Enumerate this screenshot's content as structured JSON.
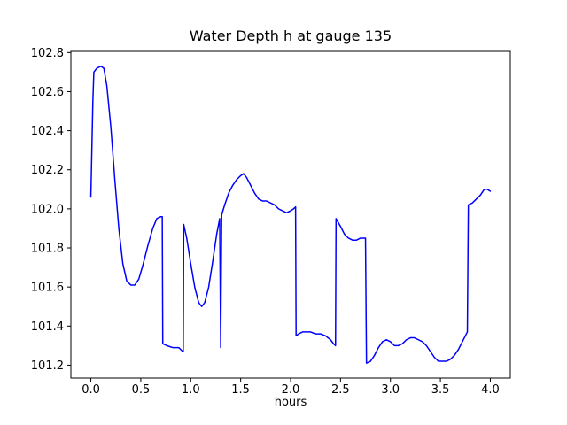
{
  "figure": {
    "background": "#ffffff",
    "axes_color": "#000000",
    "line_color": "#0000ff"
  },
  "chart_data": {
    "type": "line",
    "title": "Water Depth h at gauge 135",
    "xlabel": "hours",
    "ylabel": "",
    "legend": "none",
    "grid": false,
    "xlim": [
      -0.2,
      4.2
    ],
    "ylim": [
      101.134,
      102.806
    ],
    "x_ticks": [
      0.0,
      0.5,
      1.0,
      1.5,
      2.0,
      2.5,
      3.0,
      3.5,
      4.0
    ],
    "x_tick_labels": [
      "0.0",
      "0.5",
      "1.0",
      "1.5",
      "2.0",
      "2.5",
      "3.0",
      "3.5",
      "4.0"
    ],
    "y_ticks": [
      101.2,
      101.4,
      101.6,
      101.8,
      102.0,
      102.2,
      102.4,
      102.6,
      102.8
    ],
    "y_tick_labels": [
      "101.2",
      "101.4",
      "101.6",
      "101.8",
      "102.0",
      "102.2",
      "102.4",
      "102.6",
      "102.8"
    ],
    "series": [
      {
        "name": "water-depth-h",
        "color": "#0000ff",
        "x": [
          0.0,
          0.02,
          0.03,
          0.06,
          0.1,
          0.13,
          0.16,
          0.2,
          0.24,
          0.28,
          0.32,
          0.36,
          0.4,
          0.44,
          0.48,
          0.52,
          0.57,
          0.62,
          0.66,
          0.7,
          0.715,
          0.72,
          0.76,
          0.82,
          0.88,
          0.92,
          0.925,
          0.93,
          0.96,
          1.0,
          1.04,
          1.08,
          1.11,
          1.14,
          1.18,
          1.22,
          1.26,
          1.29,
          1.3,
          1.31,
          1.34,
          1.38,
          1.42,
          1.46,
          1.5,
          1.53,
          1.56,
          1.6,
          1.64,
          1.68,
          1.72,
          1.76,
          1.8,
          1.84,
          1.88,
          1.92,
          1.96,
          2.0,
          2.03,
          2.05,
          2.055,
          2.08,
          2.12,
          2.16,
          2.2,
          2.25,
          2.3,
          2.35,
          2.4,
          2.43,
          2.45,
          2.455,
          2.5,
          2.54,
          2.58,
          2.62,
          2.66,
          2.7,
          2.74,
          2.75,
          2.76,
          2.8,
          2.84,
          2.88,
          2.92,
          2.96,
          3.0,
          3.04,
          3.08,
          3.12,
          3.16,
          3.2,
          3.24,
          3.28,
          3.32,
          3.36,
          3.4,
          3.44,
          3.48,
          3.52,
          3.56,
          3.6,
          3.64,
          3.68,
          3.72,
          3.75,
          3.77,
          3.78,
          3.82,
          3.86,
          3.9,
          3.94,
          3.97,
          4.0
        ],
        "y": [
          102.06,
          102.55,
          102.7,
          102.72,
          102.73,
          102.72,
          102.63,
          102.42,
          102.15,
          101.9,
          101.72,
          101.63,
          101.61,
          101.61,
          101.64,
          101.71,
          101.81,
          101.9,
          101.95,
          101.96,
          101.96,
          101.31,
          101.3,
          101.29,
          101.29,
          101.27,
          101.27,
          101.92,
          101.85,
          101.72,
          101.6,
          101.52,
          101.5,
          101.52,
          101.6,
          101.73,
          101.87,
          101.95,
          101.29,
          101.97,
          102.02,
          102.08,
          102.12,
          102.15,
          102.17,
          102.18,
          102.16,
          102.12,
          102.08,
          102.05,
          102.04,
          102.04,
          102.03,
          102.02,
          102.0,
          101.99,
          101.98,
          101.99,
          102.0,
          102.01,
          101.35,
          101.36,
          101.37,
          101.37,
          101.37,
          101.36,
          101.36,
          101.35,
          101.33,
          101.31,
          101.3,
          101.95,
          101.91,
          101.87,
          101.85,
          101.84,
          101.84,
          101.85,
          101.85,
          101.85,
          101.21,
          101.22,
          101.25,
          101.29,
          101.32,
          101.33,
          101.32,
          101.3,
          101.3,
          101.31,
          101.33,
          101.34,
          101.34,
          101.33,
          101.32,
          101.3,
          101.27,
          101.24,
          101.22,
          101.22,
          101.22,
          101.23,
          101.25,
          101.28,
          101.32,
          101.35,
          101.37,
          102.02,
          102.03,
          102.05,
          102.07,
          102.1,
          102.1,
          102.09
        ]
      }
    ]
  }
}
